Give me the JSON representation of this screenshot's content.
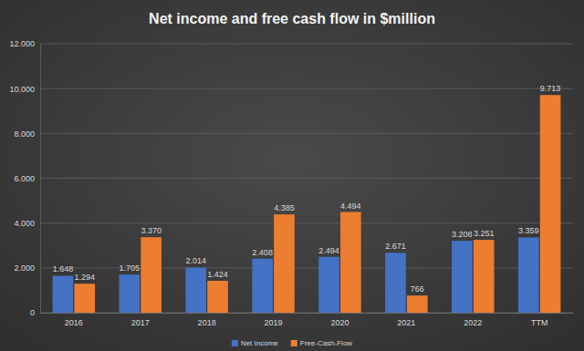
{
  "chart_data": {
    "type": "bar",
    "title": "Net income and free cash flow in $million",
    "categories": [
      "2016",
      "2017",
      "2018",
      "2019",
      "2020",
      "2021",
      "2022",
      "TTM"
    ],
    "series": [
      {
        "name": "Net Income",
        "color": "#4472c4",
        "values": [
          1648,
          1705,
          2014,
          2408,
          2494,
          2671,
          3208,
          3359
        ],
        "value_labels": [
          "1.648",
          "1.705",
          "2.014",
          "2.408",
          "2.494",
          "2.671",
          "3.208",
          "3.359"
        ]
      },
      {
        "name": "Free-Cash-Flow",
        "color": "#ed7d31",
        "values": [
          1294,
          3370,
          1424,
          4385,
          4494,
          766,
          3251,
          9713
        ],
        "value_labels": [
          "1.294",
          "3.370",
          "1.424",
          "4.385",
          "4.494",
          "766",
          "3.251",
          "9.713"
        ]
      }
    ],
    "ylim": [
      0,
      12000
    ],
    "yticks": [
      0,
      {
        "value": 2000,
        "label": "2.000"
      },
      {
        "value": 4000,
        "label": "4.000"
      },
      {
        "value": 6000,
        "label": "6.000"
      },
      {
        "value": 8000,
        "label": "8.000"
      },
      {
        "value": 10000,
        "label": "10.000"
      },
      {
        "value": 12000,
        "label": "12.000"
      }
    ],
    "grid": true,
    "legend": "bottom",
    "data_labels": true
  }
}
